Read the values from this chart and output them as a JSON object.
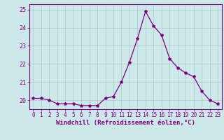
{
  "x": [
    0,
    1,
    2,
    3,
    4,
    5,
    6,
    7,
    8,
    9,
    10,
    11,
    12,
    13,
    14,
    15,
    16,
    17,
    18,
    19,
    20,
    21,
    22,
    23
  ],
  "y": [
    20.1,
    20.1,
    20.0,
    19.8,
    19.8,
    19.8,
    19.7,
    19.7,
    19.7,
    20.1,
    20.2,
    21.0,
    22.1,
    23.4,
    24.9,
    24.1,
    23.6,
    22.3,
    21.8,
    21.5,
    21.3,
    20.5,
    20.0,
    19.8
  ],
  "line_color": "#800080",
  "marker": "*",
  "marker_size": 3,
  "bg_color": "#cce8e8",
  "grid_color": "#aacccc",
  "xlabel": "Windchill (Refroidissement éolien,°C)",
  "ylim": [
    19.5,
    25.3
  ],
  "xlim": [
    -0.5,
    23.5
  ],
  "yticks": [
    20,
    21,
    22,
    23,
    24,
    25
  ],
  "xticks": [
    0,
    1,
    2,
    3,
    4,
    5,
    6,
    7,
    8,
    9,
    10,
    11,
    12,
    13,
    14,
    15,
    16,
    17,
    18,
    19,
    20,
    21,
    22,
    23
  ],
  "tick_color": "#800080",
  "label_color": "#800080",
  "spine_color": "#800080",
  "tick_fontsize": 5.5,
  "xlabel_fontsize": 6.5,
  "linewidth": 0.9
}
